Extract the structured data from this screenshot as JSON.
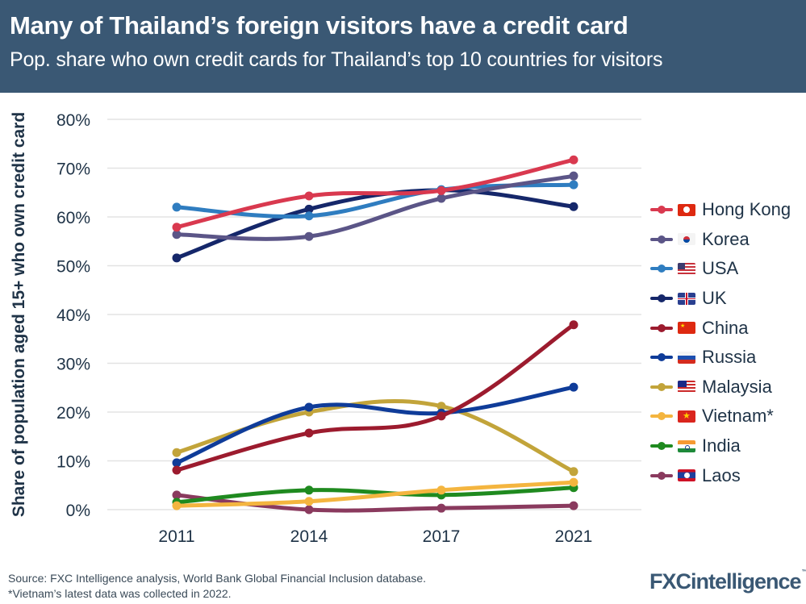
{
  "header": {
    "title": "Many of Thailand’s foreign visitors have a credit card",
    "subtitle": "Pop. share who own credit cards for Thailand’s top 10 countries for visitors",
    "background": "#3a5874"
  },
  "chart_data": {
    "type": "line",
    "title": "Many of Thailand’s foreign visitors have a credit card",
    "subtitle": "Pop. share who own credit cards for Thailand’s top 10 countries for visitors",
    "xlabel": "",
    "ylabel": "Share of population aged 15+ who own credit card",
    "x": [
      "2011",
      "2014",
      "2017",
      "2021"
    ],
    "ylim": [
      0,
      80
    ],
    "yticks": [
      "0%",
      "10%",
      "20%",
      "30%",
      "40%",
      "50%",
      "60%",
      "70%",
      "80%"
    ],
    "grid": true,
    "legend_position": "right",
    "series": [
      {
        "name": "Hong Kong",
        "flag": "hong-kong-flag",
        "color": "#d9394f",
        "values": [
          57.9,
          64.3,
          65.4,
          71.7
        ]
      },
      {
        "name": "Korea",
        "flag": "korea-flag",
        "color": "#5b5587",
        "values": [
          56.4,
          56.0,
          63.8,
          68.4
        ]
      },
      {
        "name": "USA",
        "flag": "usa-flag",
        "color": "#2f7dc0",
        "values": [
          62.0,
          60.2,
          65.6,
          66.6
        ]
      },
      {
        "name": "UK",
        "flag": "uk-flag",
        "color": "#15276a",
        "values": [
          51.6,
          61.6,
          65.5,
          62.1
        ]
      },
      {
        "name": "China",
        "flag": "china-flag",
        "color": "#9c1b2e",
        "values": [
          8.1,
          15.7,
          19.2,
          37.9
        ]
      },
      {
        "name": "Russia",
        "flag": "russia-flag",
        "color": "#0f3c99",
        "values": [
          9.6,
          21.0,
          19.8,
          25.1
        ]
      },
      {
        "name": "Malaysia",
        "flag": "malaysia-flag",
        "color": "#c2a43a",
        "values": [
          11.7,
          20.0,
          21.2,
          7.8
        ]
      },
      {
        "name": "Vietnam*",
        "flag": "vietnam-flag",
        "color": "#f4b53f",
        "values": [
          0.8,
          1.7,
          4.0,
          5.6
        ]
      },
      {
        "name": "India",
        "flag": "india-flag",
        "color": "#1f8a1f",
        "values": [
          1.5,
          4.0,
          3.0,
          4.5
        ]
      },
      {
        "name": "Laos",
        "flag": "laos-flag",
        "color": "#8a3a5e",
        "values": [
          3.0,
          0.0,
          0.3,
          0.8
        ]
      }
    ]
  },
  "footer": {
    "source": "Source: FXC Intelligence analysis, World Bank Global Financial Inclusion database.",
    "note": "*Vietnam’s latest data was collected in 2022."
  },
  "logo": {
    "text": "FXCintelligence",
    "tm": "™"
  }
}
